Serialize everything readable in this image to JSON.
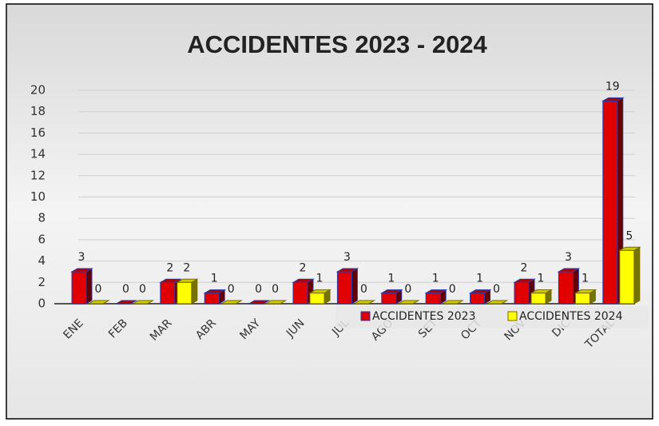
{
  "chart_data": {
    "type": "bar3d",
    "title": "ACCIDENTES 2023 - 2024",
    "categories": [
      "ENE",
      "FEB",
      "MAR",
      "ABR",
      "MAY",
      "JUN",
      "JUL",
      "AGO",
      "SET",
      "OCT",
      "NOV",
      "DIC",
      "TOTAL"
    ],
    "series": [
      {
        "name": "ACCIDENTES 2023",
        "color": "#e00000",
        "values": [
          3,
          0,
          2,
          1,
          0,
          2,
          3,
          1,
          1,
          1,
          2,
          3,
          19
        ]
      },
      {
        "name": "ACCIDENTES 2024",
        "color": "#ffff00",
        "values": [
          0,
          0,
          2,
          0,
          0,
          1,
          0,
          0,
          0,
          0,
          1,
          1,
          5
        ]
      }
    ],
    "ylim": [
      0,
      20
    ],
    "yticks": [
      0,
      2,
      4,
      6,
      8,
      10,
      12,
      14,
      16,
      18,
      20
    ],
    "grid": true,
    "legend": "bottom-right"
  }
}
